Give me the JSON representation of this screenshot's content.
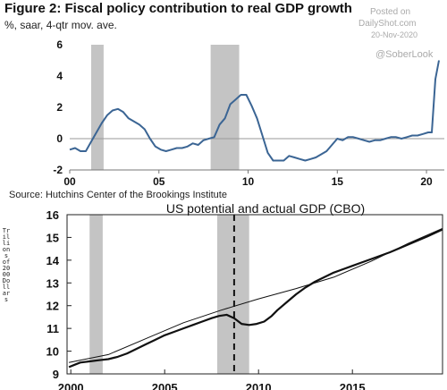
{
  "figure_title": "Figure 2: Fiscal policy contribution to real GDP growth",
  "figure_subtitle": "%, saar, 4-qtr mov. ave.",
  "watermark": {
    "posted_on": "Posted on",
    "site": "DailyShot.com",
    "date": "20-Nov-2020",
    "handle": "@SoberLook"
  },
  "source": "Source: Hutchins Center of the Brookings Institute",
  "chart_data": [
    {
      "type": "line",
      "title": "Figure 2: Fiscal policy contribution to real GDP growth",
      "subtitle": "%, saar, 4-qtr mov. ave.",
      "xlim": [
        2000,
        2021
      ],
      "ylim": [
        -2,
        6
      ],
      "x_ticks": [
        "00",
        "05",
        "10",
        "15",
        "20"
      ],
      "y_ticks": [
        "-2",
        "0",
        "2",
        "4",
        "6"
      ],
      "recessions": [
        [
          2001.2,
          2001.9
        ],
        [
          2007.9,
          2009.5
        ]
      ],
      "line_color": "#3b6594",
      "series": [
        {
          "x": [
            2000.0,
            2000.3,
            2000.6,
            2000.9,
            2001.2,
            2001.5,
            2001.8,
            2002.1,
            2002.4,
            2002.7,
            2003.0,
            2003.3,
            2003.6,
            2003.9,
            2004.2,
            2004.5,
            2004.8,
            2005.1,
            2005.4,
            2005.7,
            2006.0,
            2006.3,
            2006.6,
            2006.9,
            2007.2,
            2007.5,
            2007.8,
            2008.1,
            2008.4,
            2008.7,
            2009.0,
            2009.3,
            2009.6,
            2009.9,
            2010.2,
            2010.5,
            2010.8,
            2011.1,
            2011.4,
            2011.7,
            2012.0,
            2012.3,
            2012.6,
            2012.9,
            2013.2,
            2013.5,
            2013.8,
            2014.1,
            2014.4,
            2014.7,
            2015.0,
            2015.3,
            2015.6,
            2015.9,
            2016.2,
            2016.5,
            2016.8,
            2017.1,
            2017.4,
            2017.7,
            2018.0,
            2018.3,
            2018.6,
            2018.9,
            2019.2,
            2019.5,
            2019.8,
            2020.1,
            2020.3,
            2020.5,
            2020.7
          ],
          "y": [
            -0.7,
            -0.6,
            -0.8,
            -0.8,
            -0.2,
            0.4,
            1.0,
            1.5,
            1.8,
            1.9,
            1.7,
            1.3,
            1.1,
            0.9,
            0.6,
            0.0,
            -0.5,
            -0.7,
            -0.8,
            -0.7,
            -0.6,
            -0.6,
            -0.5,
            -0.3,
            -0.4,
            -0.1,
            0.0,
            0.1,
            0.9,
            1.3,
            2.2,
            2.5,
            2.8,
            2.8,
            2.1,
            1.3,
            0.2,
            -0.9,
            -1.4,
            -1.4,
            -1.4,
            -1.1,
            -1.2,
            -1.3,
            -1.4,
            -1.3,
            -1.2,
            -1.0,
            -0.8,
            -0.4,
            0.0,
            -0.1,
            0.1,
            0.1,
            0.0,
            -0.1,
            -0.2,
            -0.1,
            -0.1,
            0.0,
            0.1,
            0.1,
            0.0,
            0.1,
            0.2,
            0.2,
            0.3,
            0.4,
            0.4,
            3.8,
            5.0
          ]
        }
      ]
    },
    {
      "type": "line",
      "title": "US potential and actual GDP (CBO)",
      "ylabel": "Trillions of 2000 Dollars",
      "xlim": [
        1999.8,
        2019.8
      ],
      "ylim": [
        9,
        16
      ],
      "x_ticks": [
        "2000",
        "2005",
        "2010",
        "2015"
      ],
      "y_ticks": [
        "9",
        "10",
        "11",
        "12",
        "13",
        "14",
        "15",
        "16"
      ],
      "recessions": [
        [
          2001.0,
          2001.7
        ],
        [
          2007.8,
          2009.5
        ]
      ],
      "marker_year": 2008.7,
      "series": [
        {
          "x": [
            1999.9,
            2002,
            2004,
            2006,
            2008,
            2010,
            2012,
            2014,
            2016,
            2018,
            2019.8
          ],
          "y": [
            9.5,
            9.85,
            10.55,
            11.25,
            11.8,
            12.3,
            12.75,
            13.25,
            13.95,
            14.75,
            15.4
          ]
        },
        {
          "x": [
            1999.9,
            2000.2,
            2000.5,
            2001.0,
            2001.5,
            2002.0,
            2002.5,
            2003.0,
            2003.5,
            2004.0,
            2004.5,
            2005.0,
            2005.5,
            2006.0,
            2006.5,
            2007.0,
            2007.5,
            2007.9,
            2008.3,
            2008.7,
            2009.1,
            2009.5,
            2009.9,
            2010.3,
            2010.7,
            2011.0,
            2011.5,
            2012.0,
            2012.5,
            2013.0,
            2013.5,
            2014.0,
            2014.5,
            2015.0,
            2015.5,
            2016.0,
            2017.0,
            2018.0,
            2019.0,
            2019.8
          ],
          "y": [
            9.3,
            9.4,
            9.5,
            9.55,
            9.6,
            9.65,
            9.75,
            9.9,
            10.1,
            10.3,
            10.5,
            10.7,
            10.85,
            11.0,
            11.15,
            11.3,
            11.45,
            11.55,
            11.6,
            11.45,
            11.2,
            11.15,
            11.2,
            11.3,
            11.55,
            11.8,
            12.15,
            12.5,
            12.8,
            13.05,
            13.25,
            13.45,
            13.6,
            13.75,
            13.9,
            14.05,
            14.35,
            14.7,
            15.05,
            15.35
          ]
        }
      ]
    }
  ]
}
